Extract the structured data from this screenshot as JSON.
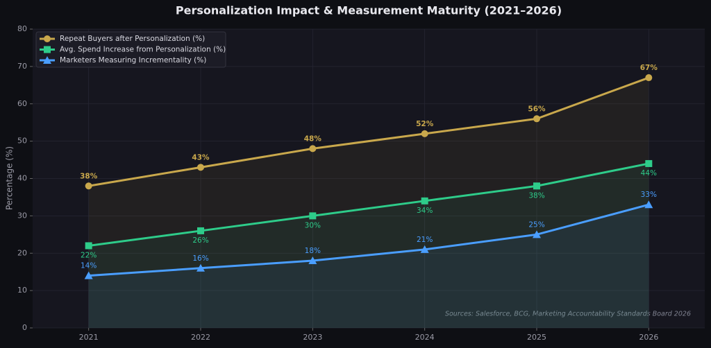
{
  "chart_data": {
    "type": "line",
    "title": "Personalization Impact & Measurement Maturity (2021–2026)",
    "ylabel": "Percentage (%)",
    "annotation": "Sources: Salesforce, BCG, Marketing Accountability Standards Board 2026",
    "x": [
      2021,
      2022,
      2023,
      2024,
      2025,
      2026
    ],
    "xlim": [
      2020.5,
      2026.5
    ],
    "xticks": [
      2021,
      2022,
      2023,
      2024,
      2025,
      2026
    ],
    "ylim": [
      0,
      80
    ],
    "yticks": [
      0,
      10,
      20,
      30,
      40,
      50,
      60,
      70,
      80
    ],
    "grid": true,
    "legend": "upper-left",
    "series": [
      {
        "name": "Repeat Buyers after Personalization (%)",
        "color": "#c9a84c",
        "marker": "circle",
        "values": [
          38,
          43,
          48,
          52,
          56,
          67
        ],
        "value_labels": [
          "38%",
          "43%",
          "48%",
          "52%",
          "56%",
          "67%"
        ]
      },
      {
        "name": "Avg. Spend Increase from Personalization (%)",
        "color": "#2ecc8a",
        "marker": "square",
        "values": [
          22,
          26,
          30,
          34,
          38,
          44
        ],
        "value_labels": [
          "22%",
          "26%",
          "30%",
          "34%",
          "38%",
          "44%"
        ]
      },
      {
        "name": "Marketers Measuring Incrementality (%)",
        "color": "#4a9eff",
        "marker": "triangle",
        "values": [
          14,
          16,
          18,
          21,
          25,
          33
        ],
        "value_labels": [
          "14%",
          "16%",
          "18%",
          "21%",
          "25%",
          "33%"
        ]
      }
    ]
  }
}
